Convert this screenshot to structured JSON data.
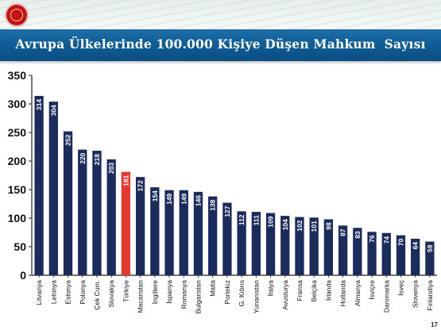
{
  "title": "Avrupa Ülkelerinde 100.000 Kişiye Düşen Mahkum  Sayısı",
  "page_number": "17",
  "colors": {
    "bar": "#1a2b5c",
    "highlight": "#e8372f",
    "title_bar": "#0e5a93"
  },
  "chart_data": {
    "type": "bar",
    "title": "Avrupa Ülkelerinde 100.000 Kişiye Düşen Mahkum  Sayısı",
    "xlabel": "",
    "ylabel": "",
    "ylim": [
      0,
      350
    ],
    "yticks": [
      0,
      50,
      100,
      150,
      200,
      250,
      300,
      350
    ],
    "grid": false,
    "highlight_category": "Türkiye",
    "categories": [
      "Litvanya",
      "Letonya",
      "Estonya",
      "Polonya",
      "Çek Cum.",
      "Slovakya",
      "Türkiye",
      "Macaristan",
      "İngiltere",
      "İspanya",
      "Romanya",
      "Bulgaristan",
      "Malta",
      "Portekiz",
      "G. Kıbrıs",
      "Yunanistan",
      "İtalya",
      "Avusturya",
      "Fransa",
      "Belçika",
      "İrlanda",
      "Hollanda",
      "Almanya",
      "İsviçre",
      "Danimarka",
      "İsveç",
      "Slovenya",
      "Finlandiya"
    ],
    "values": [
      314,
      304,
      252,
      220,
      218,
      203,
      181,
      172,
      154,
      149,
      149,
      146,
      138,
      127,
      112,
      111,
      109,
      104,
      102,
      101,
      98,
      87,
      83,
      76,
      74,
      70,
      64,
      59
    ]
  }
}
